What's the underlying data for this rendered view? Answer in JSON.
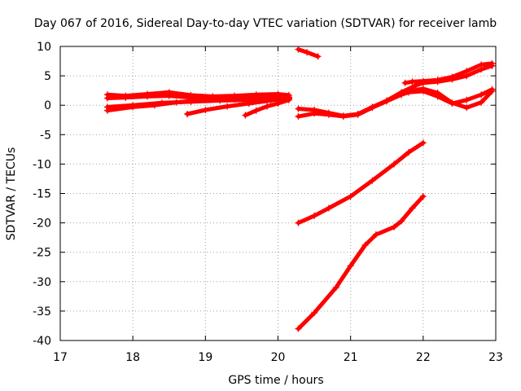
{
  "chart_data": {
    "type": "scatter",
    "title": "Day 067 of 2016, Sidereal Day-to-day VTEC variation (SDTVAR) for receiver lamb",
    "xlabel": "GPS time / hours",
    "ylabel": "SDTVAR / TECUs",
    "xlim": [
      17,
      23
    ],
    "ylim": [
      -40,
      10
    ],
    "xticks": [
      17,
      18,
      19,
      20,
      21,
      22,
      23
    ],
    "yticks": [
      -40,
      -35,
      -30,
      -25,
      -20,
      -15,
      -10,
      -5,
      0,
      5,
      10
    ],
    "grid": true,
    "legend": "none",
    "marker": "plus",
    "color": "#ff0000",
    "series": [
      {
        "x": [
          17.65,
          17.9,
          18.2,
          18.5,
          18.8,
          19.1,
          19.4,
          19.7,
          20.0,
          20.15
        ],
        "y": [
          1.8,
          1.6,
          1.9,
          2.2,
          1.7,
          1.5,
          1.6,
          1.8,
          1.9,
          1.7
        ]
      },
      {
        "x": [
          17.65,
          17.9,
          18.2,
          18.5,
          18.8,
          19.1,
          19.4,
          19.7,
          20.0,
          20.15
        ],
        "y": [
          1.2,
          1.3,
          1.5,
          1.6,
          1.3,
          1.2,
          1.3,
          1.4,
          1.5,
          1.4
        ]
      },
      {
        "x": [
          17.65,
          18.0,
          18.3,
          18.6,
          19.0,
          19.4,
          19.8,
          20.15
        ],
        "y": [
          -0.9,
          -0.3,
          0.0,
          0.5,
          0.9,
          1.0,
          1.1,
          1.3
        ]
      },
      {
        "x": [
          17.65,
          18.0,
          18.4,
          18.8,
          19.2,
          19.6,
          20.0,
          20.15
        ],
        "y": [
          -0.3,
          0.0,
          0.4,
          0.6,
          0.8,
          0.9,
          1.0,
          1.1
        ]
      },
      {
        "x": [
          18.75,
          19.0,
          19.3,
          19.6,
          19.9,
          20.15
        ],
        "y": [
          -1.5,
          -0.8,
          -0.2,
          0.3,
          0.8,
          1.2
        ]
      },
      {
        "x": [
          19.55,
          19.7,
          19.85,
          20.0,
          20.15
        ],
        "y": [
          -1.7,
          -0.9,
          -0.2,
          0.3,
          0.9
        ]
      },
      {
        "x": [
          20.28,
          20.4,
          20.55
        ],
        "y": [
          9.5,
          9.0,
          8.3
        ]
      },
      {
        "x": [
          20.28,
          20.5,
          20.7,
          20.9,
          21.1,
          21.3,
          21.5,
          21.7,
          21.9,
          22.0,
          22.2,
          22.4,
          22.6,
          22.8,
          22.95
        ],
        "y": [
          -0.6,
          -0.8,
          -1.3,
          -1.8,
          -1.5,
          -0.3,
          0.8,
          2.2,
          3.4,
          3.8,
          4.0,
          4.4,
          5.0,
          6.1,
          6.7
        ]
      },
      {
        "x": [
          20.28,
          20.5,
          20.7,
          20.9,
          21.1,
          21.3,
          21.5,
          21.7,
          21.9,
          22.0,
          22.2,
          22.4,
          22.6,
          22.8,
          22.95
        ],
        "y": [
          -1.9,
          -1.4,
          -1.6,
          -1.9,
          -1.6,
          -0.4,
          0.7,
          1.8,
          2.6,
          2.8,
          2.1,
          0.4,
          -0.4,
          0.5,
          2.4
        ]
      },
      {
        "x": [
          21.75,
          21.85,
          22.0,
          22.2,
          22.4,
          22.6,
          22.8,
          22.95
        ],
        "y": [
          3.8,
          4.0,
          4.1,
          4.3,
          4.8,
          5.8,
          6.9,
          7.1
        ]
      },
      {
        "x": [
          21.8,
          22.0,
          22.2,
          22.4,
          22.6,
          22.8,
          22.95
        ],
        "y": [
          2.2,
          2.4,
          1.5,
          0.3,
          0.9,
          1.8,
          2.7
        ]
      },
      {
        "x": [
          20.28,
          20.5,
          20.7,
          21.0,
          21.3,
          21.6,
          21.8,
          22.0
        ],
        "y": [
          -20.0,
          -18.8,
          -17.5,
          -15.5,
          -12.8,
          -10.0,
          -8.0,
          -6.4
        ]
      },
      {
        "x": [
          20.28,
          20.5,
          20.8,
          21.0,
          21.2,
          21.35,
          21.6,
          21.7,
          21.85,
          22.0
        ],
        "y": [
          -38.0,
          -35.3,
          -31.0,
          -27.3,
          -23.8,
          -22.0,
          -20.7,
          -19.7,
          -17.5,
          -15.5
        ]
      }
    ]
  }
}
